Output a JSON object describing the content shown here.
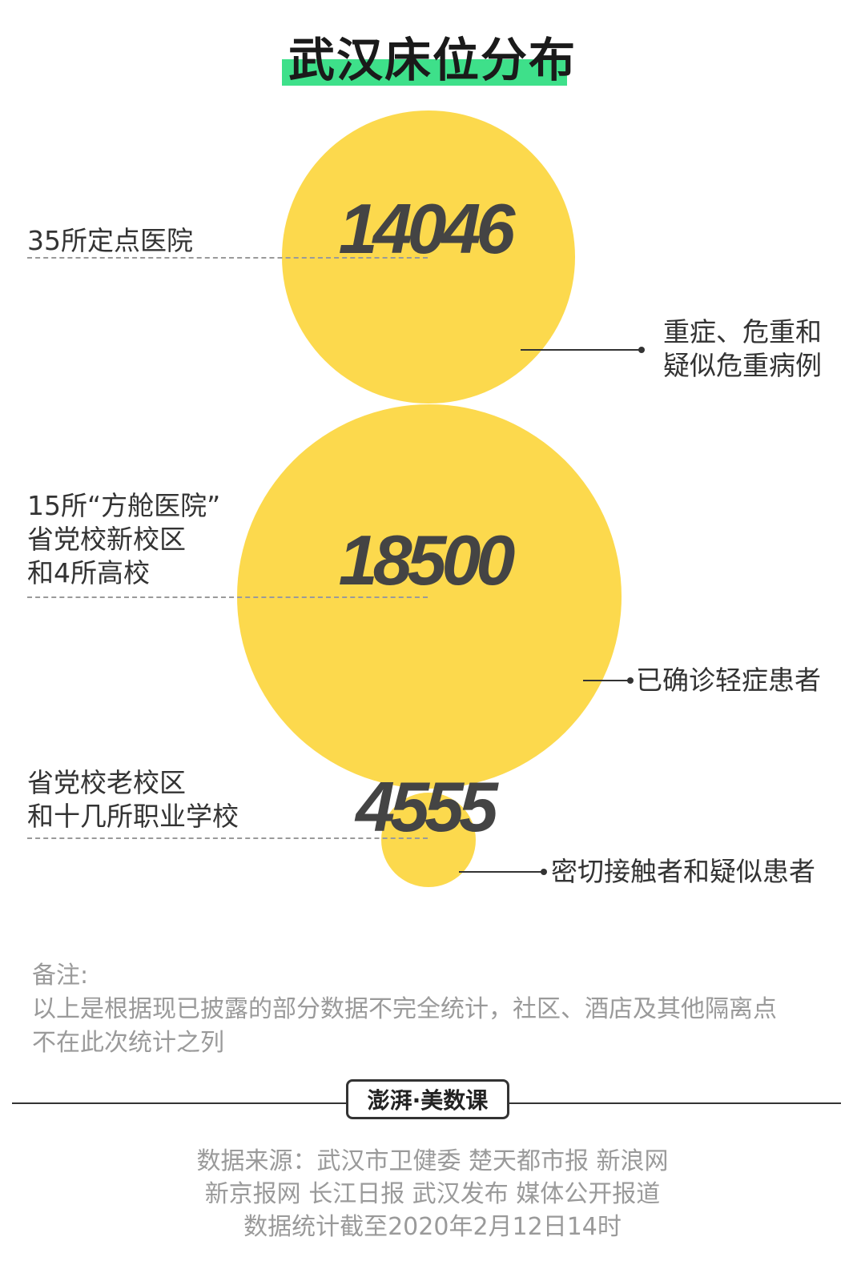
{
  "title": "武汉床位分布",
  "chart_data": {
    "type": "bubble",
    "bubbles": [
      {
        "value": 14046,
        "label_left": [
          "35所定点医院"
        ],
        "label_right": [
          "重症、危重和",
          "疑似危重病例"
        ]
      },
      {
        "value": 18500,
        "label_left": [
          "15所“方舱医院”",
          "省党校新校区",
          "和4所高校"
        ],
        "label_right": [
          "已确诊轻症患者"
        ]
      },
      {
        "value": 4555,
        "label_left": [
          "省党校老校区",
          "和十几所职业学校"
        ],
        "label_right": [
          "密切接触者和疑似患者"
        ]
      }
    ]
  },
  "note": {
    "heading": "备注:",
    "line1": "以上是根据现已披露的部分数据不完全统计，社区、酒店及其他隔离点",
    "line2": "不在此次统计之列"
  },
  "logo": "澎湃·美数课",
  "source": {
    "line1": "数据来源：武汉市卫健委 楚天都市报 新浪网",
    "line2": "新京报网 长江日报 武汉发布 媒体公开报道",
    "line3": "数据统计截至2020年2月12日14时"
  }
}
